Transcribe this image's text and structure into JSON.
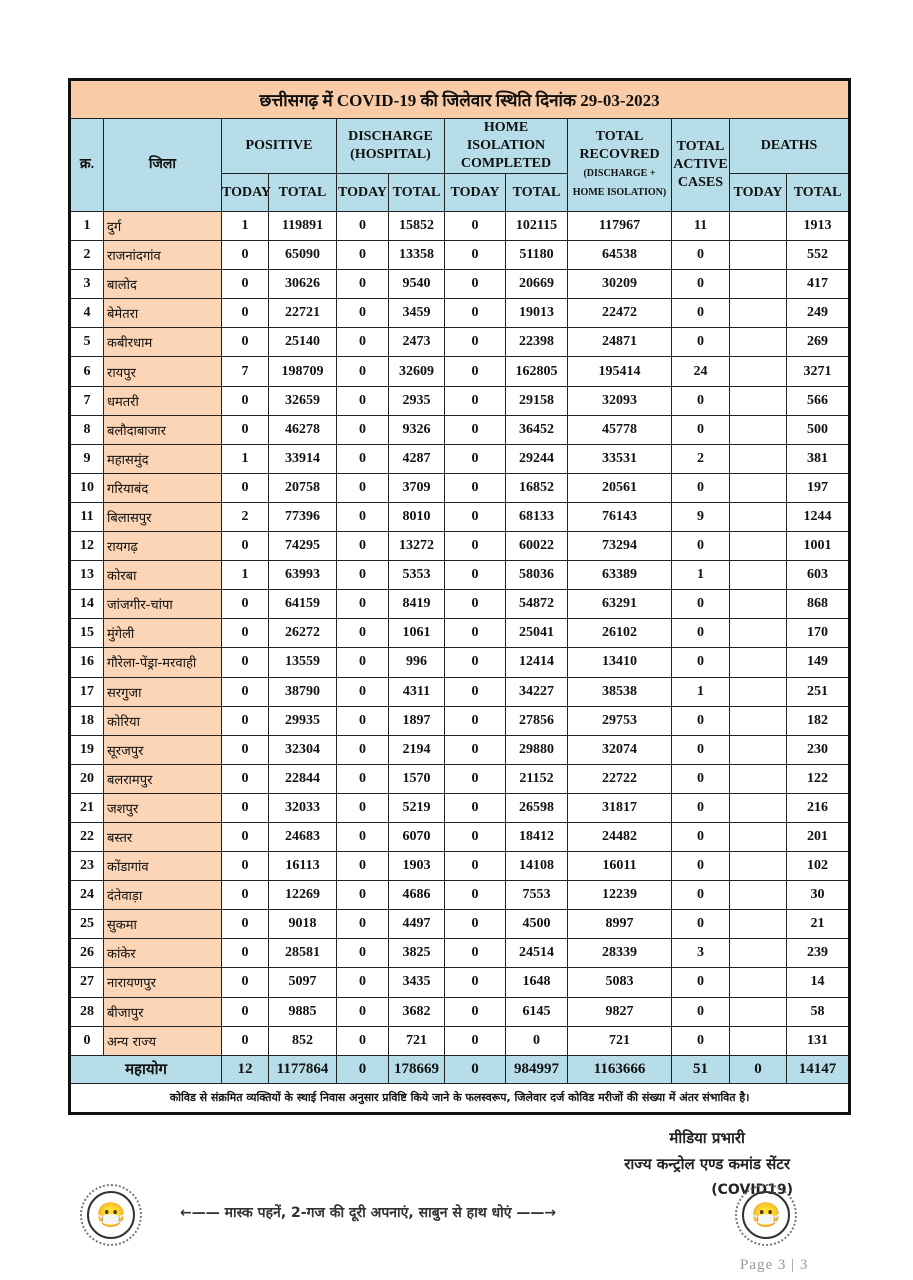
{
  "title": "छत्तीसगढ़ में COVID-19 की जिलेवार स्थिति दिनांक 29-03-2023",
  "headers": {
    "sn": "क्र.",
    "district": "जिला",
    "positive": "POSITIVE",
    "discharge": "DISCHARGE (HOSPITAL)",
    "home_isolation": "HOME ISOLATION COMPLETED",
    "recovered": "TOTAL RECOVRED",
    "recovered_sub": "(DISCHARGE + HOME ISOLATION)",
    "active": "TOTAL ACTIVE CASES",
    "deaths": "DEATHS",
    "today": "TODAY",
    "total": "TOTAL"
  },
  "rows": [
    [
      "1",
      "दुर्ग",
      "1",
      "119891",
      "0",
      "15852",
      "0",
      "102115",
      "117967",
      "11",
      "",
      "1913"
    ],
    [
      "2",
      "राजनांदगांव",
      "0",
      "65090",
      "0",
      "13358",
      "0",
      "51180",
      "64538",
      "0",
      "",
      "552"
    ],
    [
      "3",
      "बालोद",
      "0",
      "30626",
      "0",
      "9540",
      "0",
      "20669",
      "30209",
      "0",
      "",
      "417"
    ],
    [
      "4",
      "बेमेतरा",
      "0",
      "22721",
      "0",
      "3459",
      "0",
      "19013",
      "22472",
      "0",
      "",
      "249"
    ],
    [
      "5",
      "कबीरधाम",
      "0",
      "25140",
      "0",
      "2473",
      "0",
      "22398",
      "24871",
      "0",
      "",
      "269"
    ],
    [
      "6",
      "रायपुर",
      "7",
      "198709",
      "0",
      "32609",
      "0",
      "162805",
      "195414",
      "24",
      "",
      "3271"
    ],
    [
      "7",
      "धमतरी",
      "0",
      "32659",
      "0",
      "2935",
      "0",
      "29158",
      "32093",
      "0",
      "",
      "566"
    ],
    [
      "8",
      "बलौदाबाजार",
      "0",
      "46278",
      "0",
      "9326",
      "0",
      "36452",
      "45778",
      "0",
      "",
      "500"
    ],
    [
      "9",
      "महासमुंद",
      "1",
      "33914",
      "0",
      "4287",
      "0",
      "29244",
      "33531",
      "2",
      "",
      "381"
    ],
    [
      "10",
      "गरियाबंद",
      "0",
      "20758",
      "0",
      "3709",
      "0",
      "16852",
      "20561",
      "0",
      "",
      "197"
    ],
    [
      "11",
      "बिलासपुर",
      "2",
      "77396",
      "0",
      "8010",
      "0",
      "68133",
      "76143",
      "9",
      "",
      "1244"
    ],
    [
      "12",
      "रायगढ़",
      "0",
      "74295",
      "0",
      "13272",
      "0",
      "60022",
      "73294",
      "0",
      "",
      "1001"
    ],
    [
      "13",
      "कोरबा",
      "1",
      "63993",
      "0",
      "5353",
      "0",
      "58036",
      "63389",
      "1",
      "",
      "603"
    ],
    [
      "14",
      "जांजगीर-चांपा",
      "0",
      "64159",
      "0",
      "8419",
      "0",
      "54872",
      "63291",
      "0",
      "",
      "868"
    ],
    [
      "15",
      "मुंगेली",
      "0",
      "26272",
      "0",
      "1061",
      "0",
      "25041",
      "26102",
      "0",
      "",
      "170"
    ],
    [
      "16",
      "गौरेला-पेंड्रा-मरवाही",
      "0",
      "13559",
      "0",
      "996",
      "0",
      "12414",
      "13410",
      "0",
      "",
      "149"
    ],
    [
      "17",
      "सरगुजा",
      "0",
      "38790",
      "0",
      "4311",
      "0",
      "34227",
      "38538",
      "1",
      "",
      "251"
    ],
    [
      "18",
      "कोरिया",
      "0",
      "29935",
      "0",
      "1897",
      "0",
      "27856",
      "29753",
      "0",
      "",
      "182"
    ],
    [
      "19",
      "सूरजपुर",
      "0",
      "32304",
      "0",
      "2194",
      "0",
      "29880",
      "32074",
      "0",
      "",
      "230"
    ],
    [
      "20",
      "बलरामपुर",
      "0",
      "22844",
      "0",
      "1570",
      "0",
      "21152",
      "22722",
      "0",
      "",
      "122"
    ],
    [
      "21",
      "जशपुर",
      "0",
      "32033",
      "0",
      "5219",
      "0",
      "26598",
      "31817",
      "0",
      "",
      "216"
    ],
    [
      "22",
      "बस्तर",
      "0",
      "24683",
      "0",
      "6070",
      "0",
      "18412",
      "24482",
      "0",
      "",
      "201"
    ],
    [
      "23",
      "कोंडागांव",
      "0",
      "16113",
      "0",
      "1903",
      "0",
      "14108",
      "16011",
      "0",
      "",
      "102"
    ],
    [
      "24",
      "दंतेवाड़ा",
      "0",
      "12269",
      "0",
      "4686",
      "0",
      "7553",
      "12239",
      "0",
      "",
      "30"
    ],
    [
      "25",
      "सुकमा",
      "0",
      "9018",
      "0",
      "4497",
      "0",
      "4500",
      "8997",
      "0",
      "",
      "21"
    ],
    [
      "26",
      "कांकेर",
      "0",
      "28581",
      "0",
      "3825",
      "0",
      "24514",
      "28339",
      "3",
      "",
      "239"
    ],
    [
      "27",
      "नारायणपुर",
      "0",
      "5097",
      "0",
      "3435",
      "0",
      "1648",
      "5083",
      "0",
      "",
      "14"
    ],
    [
      "28",
      "बीजापुर",
      "0",
      "9885",
      "0",
      "3682",
      "0",
      "6145",
      "9827",
      "0",
      "",
      "58"
    ],
    [
      "0",
      "अन्य राज्य",
      "0",
      "852",
      "0",
      "721",
      "0",
      "0",
      "721",
      "0",
      "",
      "131"
    ]
  ],
  "total_row": [
    "महायोग",
    "12",
    "1177864",
    "0",
    "178669",
    "0",
    "984997",
    "1163666",
    "51",
    "0",
    "14147"
  ],
  "note": "कोविड से संक्रमित व्यक्तियों के स्थाई निवास अनुसार प्रविष्टि किये जाने के फलस्वरूप, जिलेवार दर्ज कोविड मरीजों की संख्या में अंतर संभावित है।",
  "signature": {
    "line1": "मीडिया प्रभारी",
    "line2": "राज्य कन्ट्रोल एण्ड कमांड सेंटर",
    "line3": "(COVID19)"
  },
  "slogan": "←—— मास्क पहनें, 2-गज की दूरी अपनाएं, साबुन से हाथ धोएं ——→",
  "page": "Page 3 | 3",
  "colors": {
    "title_bg": "#f9cba6",
    "header_bg": "#b7dde8",
    "district_bg": "#fbd5b5"
  },
  "icons": [
    "masked-woman-icon",
    "masked-man-icon"
  ]
}
